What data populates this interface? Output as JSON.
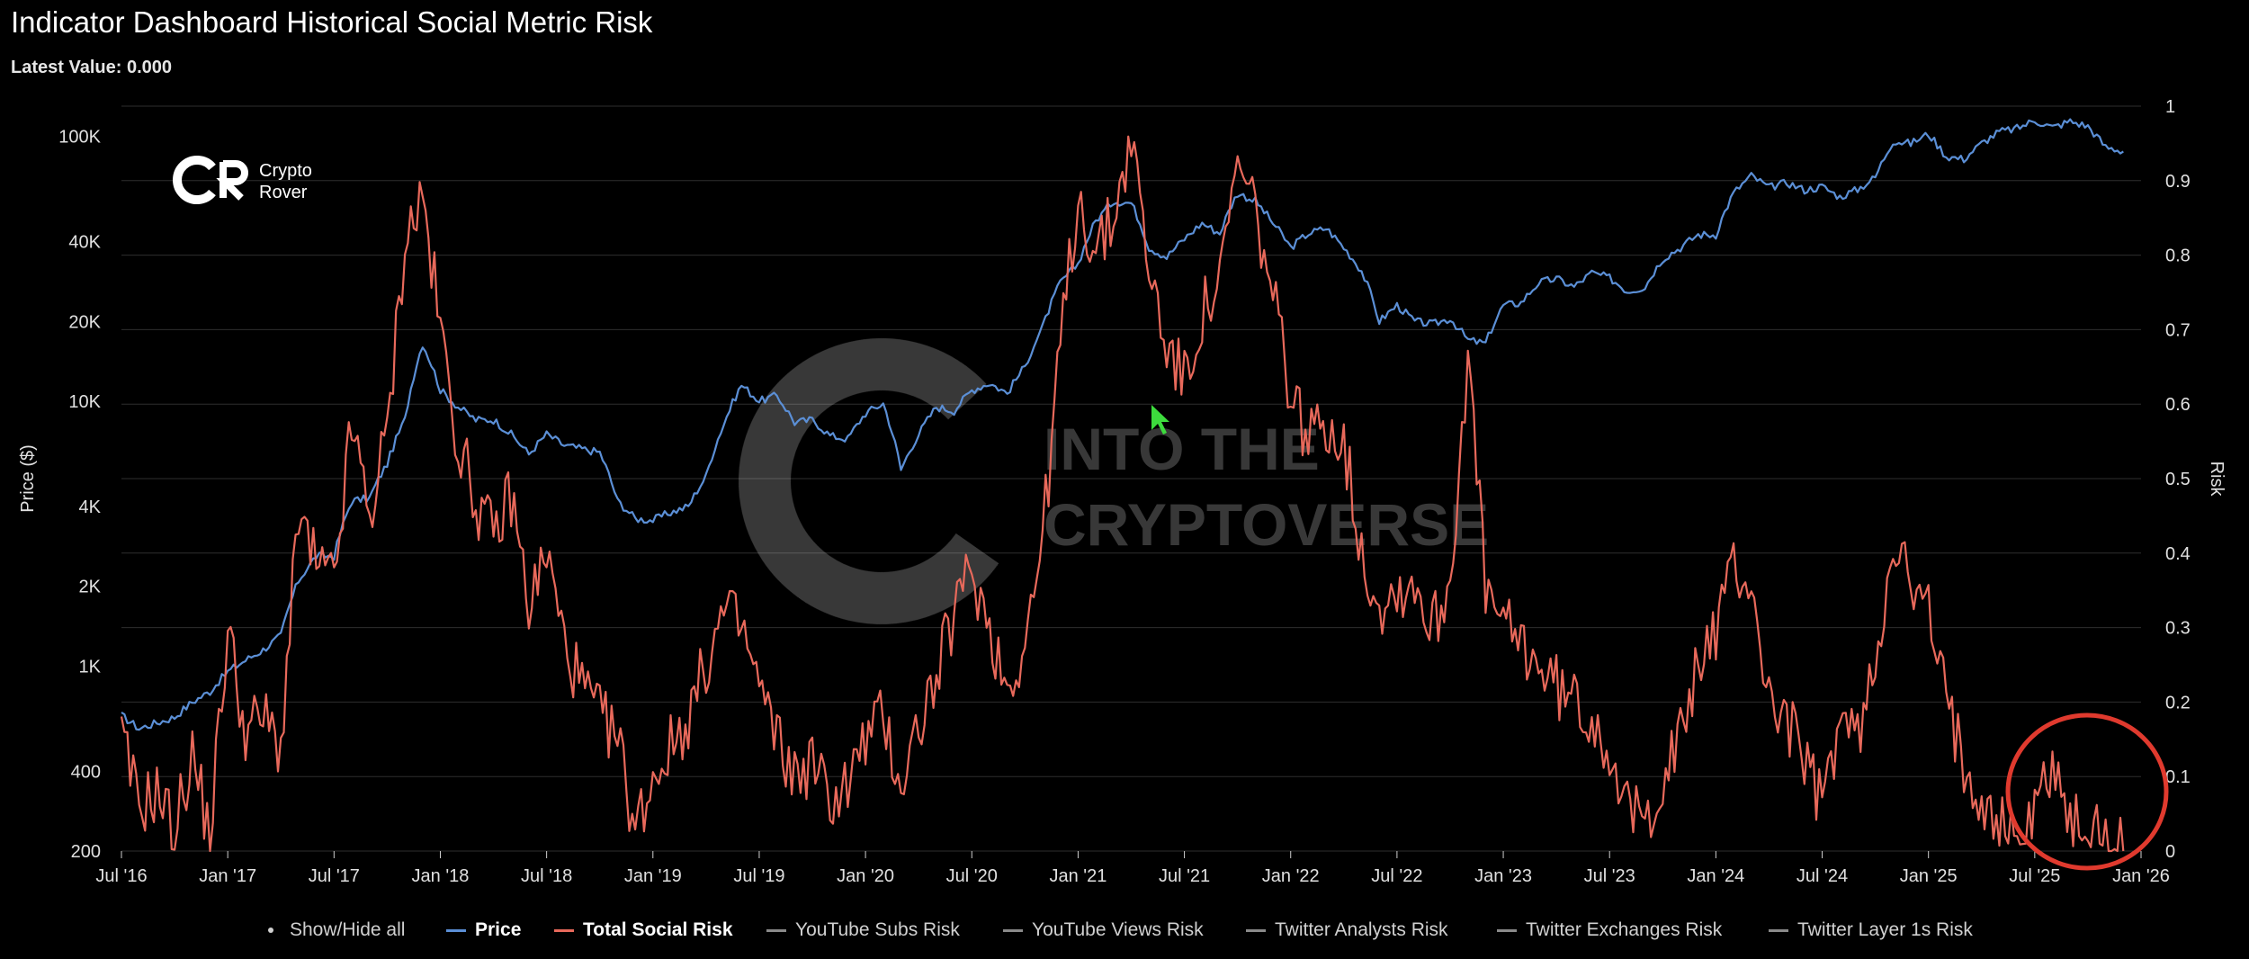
{
  "header": {
    "title": "Indicator Dashboard Historical Social Metric Risk",
    "latest_label": "Latest Value:",
    "latest_value": "0.000"
  },
  "logo": {
    "line1": "Crypto",
    "line2": "Rover"
  },
  "watermark": {
    "line1": "INTO THE",
    "line2": "CRYPTOVERSE"
  },
  "legend": {
    "show_hide": "Show/Hide all",
    "items": [
      {
        "label": "Price",
        "color": "#5b8fd6",
        "bold": true
      },
      {
        "label": "Total Social Risk",
        "color": "#e8695b",
        "bold": true
      },
      {
        "label": "YouTube Subs Risk",
        "color": "#8a8a8a",
        "bold": false
      },
      {
        "label": "YouTube Views Risk",
        "color": "#8a8a8a",
        "bold": false
      },
      {
        "label": "Twitter Analysts Risk",
        "color": "#8a8a8a",
        "bold": false
      },
      {
        "label": "Twitter Exchanges Risk",
        "color": "#8a8a8a",
        "bold": false
      },
      {
        "label": "Twitter Layer 1s Risk",
        "color": "#8a8a8a",
        "bold": false
      }
    ]
  },
  "colors": {
    "background": "#000000",
    "price": "#5b8fd6",
    "risk": "#e8695b",
    "grid": "#2e2e2e",
    "highlight_circle": "#e03a2e",
    "cursor": "#3ddc3d"
  },
  "chart_data": {
    "type": "line",
    "x_axis": {
      "ticks": [
        "Jul '16",
        "Jan '17",
        "Jul '17",
        "Jan '18",
        "Jul '18",
        "Jan '19",
        "Jul '19",
        "Jan '20",
        "Jul '20",
        "Jan '21",
        "Jul '21",
        "Jan '22",
        "Jul '22",
        "Jan '23",
        "Jul '23",
        "Jan '24",
        "Jul '24",
        "Jan '25",
        "Jul '25",
        "Jan '26"
      ],
      "range": [
        "Jul '16",
        "Jan '26"
      ]
    },
    "y_left": {
      "label": "Price ($)",
      "scale": "log",
      "ticks": [
        {
          "value": 200,
          "label": "200"
        },
        {
          "value": 400,
          "label": "400"
        },
        {
          "value": 1000,
          "label": "1K"
        },
        {
          "value": 2000,
          "label": "2K"
        },
        {
          "value": 4000,
          "label": "4K"
        },
        {
          "value": 10000,
          "label": "10K"
        },
        {
          "value": 20000,
          "label": "20K"
        },
        {
          "value": 40000,
          "label": "40K"
        },
        {
          "value": 100000,
          "label": "100K"
        }
      ],
      "range": [
        200,
        130000
      ]
    },
    "y_right": {
      "label": "Risk",
      "scale": "linear",
      "ticks": [
        "0",
        "0.1",
        "0.2",
        "0.3",
        "0.4",
        "0.5",
        "0.6",
        "0.7",
        "0.8",
        "0.9",
        "1"
      ],
      "range": [
        0,
        1
      ]
    },
    "grid": true,
    "series": [
      {
        "name": "Price",
        "axis": "left",
        "points": [
          [
            "2016-07",
            650
          ],
          [
            "2016-08",
            580
          ],
          [
            "2016-09",
            610
          ],
          [
            "2016-10",
            640
          ],
          [
            "2016-11",
            730
          ],
          [
            "2016-12",
            800
          ],
          [
            "2017-01",
            950
          ],
          [
            "2017-02",
            1050
          ],
          [
            "2017-03",
            1150
          ],
          [
            "2017-04",
            1300
          ],
          [
            "2017-05",
            2100
          ],
          [
            "2017-06",
            2600
          ],
          [
            "2017-07",
            2600
          ],
          [
            "2017-08",
            4200
          ],
          [
            "2017-09",
            4300
          ],
          [
            "2017-10",
            5800
          ],
          [
            "2017-11",
            8500
          ],
          [
            "2017-12",
            16500
          ],
          [
            "2018-01",
            11000
          ],
          [
            "2018-02",
            9500
          ],
          [
            "2018-03",
            8500
          ],
          [
            "2018-04",
            8500
          ],
          [
            "2018-05",
            7500
          ],
          [
            "2018-06",
            6300
          ],
          [
            "2018-07",
            7500
          ],
          [
            "2018-08",
            6800
          ],
          [
            "2018-09",
            6600
          ],
          [
            "2018-10",
            6400
          ],
          [
            "2018-11",
            4200
          ],
          [
            "2018-12",
            3600
          ],
          [
            "2019-01",
            3550
          ],
          [
            "2019-02",
            3800
          ],
          [
            "2019-03",
            4000
          ],
          [
            "2019-04",
            5200
          ],
          [
            "2019-05",
            8200
          ],
          [
            "2019-06",
            11500
          ],
          [
            "2019-07",
            10000
          ],
          [
            "2019-08",
            10500
          ],
          [
            "2019-09",
            8300
          ],
          [
            "2019-10",
            8500
          ],
          [
            "2019-11",
            7400
          ],
          [
            "2019-12",
            7200
          ],
          [
            "2020-01",
            9000
          ],
          [
            "2020-02",
            9800
          ],
          [
            "2020-03",
            5500
          ],
          [
            "2020-04",
            7500
          ],
          [
            "2020-05",
            9500
          ],
          [
            "2020-06",
            9200
          ],
          [
            "2020-07",
            11000
          ],
          [
            "2020-08",
            11700
          ],
          [
            "2020-09",
            10700
          ],
          [
            "2020-10",
            13500
          ],
          [
            "2020-11",
            19000
          ],
          [
            "2020-12",
            28000
          ],
          [
            "2021-01",
            33000
          ],
          [
            "2021-02",
            48000
          ],
          [
            "2021-03",
            57000
          ],
          [
            "2021-04",
            56000
          ],
          [
            "2021-05",
            38000
          ],
          [
            "2021-06",
            35000
          ],
          [
            "2021-07",
            41000
          ],
          [
            "2021-08",
            47000
          ],
          [
            "2021-09",
            43000
          ],
          [
            "2021-10",
            61000
          ],
          [
            "2021-11",
            57000
          ],
          [
            "2021-12",
            47000
          ],
          [
            "2022-01",
            38000
          ],
          [
            "2022-02",
            43000
          ],
          [
            "2022-03",
            45000
          ],
          [
            "2022-04",
            38000
          ],
          [
            "2022-05",
            31000
          ],
          [
            "2022-06",
            20000
          ],
          [
            "2022-07",
            23000
          ],
          [
            "2022-08",
            20000
          ],
          [
            "2022-09",
            19500
          ],
          [
            "2022-10",
            20500
          ],
          [
            "2022-11",
            17000
          ],
          [
            "2022-12",
            16500
          ],
          [
            "2023-01",
            23000
          ],
          [
            "2023-02",
            23500
          ],
          [
            "2023-03",
            28000
          ],
          [
            "2023-04",
            29000
          ],
          [
            "2023-05",
            27000
          ],
          [
            "2023-06",
            30500
          ],
          [
            "2023-07",
            29200
          ],
          [
            "2023-08",
            26000
          ],
          [
            "2023-09",
            27000
          ],
          [
            "2023-10",
            34500
          ],
          [
            "2023-11",
            38000
          ],
          [
            "2023-12",
            42500
          ],
          [
            "2024-01",
            42500
          ],
          [
            "2024-02",
            61000
          ],
          [
            "2024-03",
            71000
          ],
          [
            "2024-04",
            64000
          ],
          [
            "2024-05",
            67000
          ],
          [
            "2024-06",
            62700
          ],
          [
            "2024-07",
            64600
          ],
          [
            "2024-08",
            59000
          ],
          [
            "2024-09",
            63000
          ],
          [
            "2024-10",
            70000
          ],
          [
            "2024-11",
            96000
          ],
          [
            "2024-12",
            94000
          ],
          [
            "2025-01",
            102000
          ],
          [
            "2025-02",
            84000
          ],
          [
            "2025-03",
            82000
          ],
          [
            "2025-04",
            94000
          ],
          [
            "2025-05",
            104000
          ],
          [
            "2025-06",
            107000
          ],
          [
            "2025-07",
            115000
          ],
          [
            "2025-08",
            108000
          ],
          [
            "2025-09",
            114000
          ],
          [
            "2025-10",
            109000
          ],
          [
            "2025-11",
            91000
          ],
          [
            "2025-12",
            88000
          ]
        ]
      },
      {
        "name": "Total Social Risk",
        "axis": "right",
        "points": [
          [
            "2016-07",
            0.15
          ],
          [
            "2016-08",
            0.06
          ],
          [
            "2016-09",
            0.08
          ],
          [
            "2016-10",
            0.03
          ],
          [
            "2016-11",
            0.13
          ],
          [
            "2016-12",
            0.02
          ],
          [
            "2017-01",
            0.3
          ],
          [
            "2017-02",
            0.16
          ],
          [
            "2017-03",
            0.18
          ],
          [
            "2017-04",
            0.14
          ],
          [
            "2017-05",
            0.45
          ],
          [
            "2017-06",
            0.38
          ],
          [
            "2017-07",
            0.36
          ],
          [
            "2017-08",
            0.57
          ],
          [
            "2017-09",
            0.45
          ],
          [
            "2017-10",
            0.56
          ],
          [
            "2017-11",
            0.82
          ],
          [
            "2017-12",
            0.88
          ],
          [
            "2018-01",
            0.7
          ],
          [
            "2018-02",
            0.55
          ],
          [
            "2018-03",
            0.47
          ],
          [
            "2018-04",
            0.42
          ],
          [
            "2018-05",
            0.48
          ],
          [
            "2018-06",
            0.33
          ],
          [
            "2018-07",
            0.4
          ],
          [
            "2018-08",
            0.28
          ],
          [
            "2018-09",
            0.22
          ],
          [
            "2018-10",
            0.18
          ],
          [
            "2018-11",
            0.15
          ],
          [
            "2018-12",
            0.03
          ],
          [
            "2019-01",
            0.1
          ],
          [
            "2019-02",
            0.14
          ],
          [
            "2019-03",
            0.18
          ],
          [
            "2019-04",
            0.25
          ],
          [
            "2019-05",
            0.32
          ],
          [
            "2019-06",
            0.3
          ],
          [
            "2019-07",
            0.22
          ],
          [
            "2019-08",
            0.15
          ],
          [
            "2019-09",
            0.1
          ],
          [
            "2019-10",
            0.12
          ],
          [
            "2019-11",
            0.07
          ],
          [
            "2019-12",
            0.09
          ],
          [
            "2020-01",
            0.15
          ],
          [
            "2020-02",
            0.18
          ],
          [
            "2020-03",
            0.09
          ],
          [
            "2020-04",
            0.17
          ],
          [
            "2020-05",
            0.23
          ],
          [
            "2020-06",
            0.32
          ],
          [
            "2020-07",
            0.38
          ],
          [
            "2020-08",
            0.3
          ],
          [
            "2020-09",
            0.22
          ],
          [
            "2020-10",
            0.28
          ],
          [
            "2020-11",
            0.42
          ],
          [
            "2020-12",
            0.68
          ],
          [
            "2021-01",
            0.88
          ],
          [
            "2021-02",
            0.8
          ],
          [
            "2021-03",
            0.85
          ],
          [
            "2021-04",
            0.96
          ],
          [
            "2021-05",
            0.78
          ],
          [
            "2021-06",
            0.68
          ],
          [
            "2021-07",
            0.63
          ],
          [
            "2021-08",
            0.72
          ],
          [
            "2021-09",
            0.76
          ],
          [
            "2021-10",
            0.92
          ],
          [
            "2021-11",
            0.86
          ],
          [
            "2021-12",
            0.74
          ],
          [
            "2022-01",
            0.62
          ],
          [
            "2022-02",
            0.55
          ],
          [
            "2022-03",
            0.58
          ],
          [
            "2022-04",
            0.55
          ],
          [
            "2022-05",
            0.4
          ],
          [
            "2022-06",
            0.33
          ],
          [
            "2022-07",
            0.35
          ],
          [
            "2022-08",
            0.36
          ],
          [
            "2022-09",
            0.3
          ],
          [
            "2022-10",
            0.36
          ],
          [
            "2022-11",
            0.67
          ],
          [
            "2022-12",
            0.35
          ],
          [
            "2023-01",
            0.3
          ],
          [
            "2023-02",
            0.28
          ],
          [
            "2023-03",
            0.25
          ],
          [
            "2023-04",
            0.22
          ],
          [
            "2023-05",
            0.2
          ],
          [
            "2023-06",
            0.18
          ],
          [
            "2023-07",
            0.14
          ],
          [
            "2023-08",
            0.05
          ],
          [
            "2023-09",
            0.04
          ],
          [
            "2023-10",
            0.1
          ],
          [
            "2023-11",
            0.15
          ],
          [
            "2023-12",
            0.25
          ],
          [
            "2024-01",
            0.3
          ],
          [
            "2024-02",
            0.38
          ],
          [
            "2024-03",
            0.36
          ],
          [
            "2024-04",
            0.2
          ],
          [
            "2024-05",
            0.18
          ],
          [
            "2024-06",
            0.12
          ],
          [
            "2024-07",
            0.06
          ],
          [
            "2024-08",
            0.18
          ],
          [
            "2024-09",
            0.15
          ],
          [
            "2024-10",
            0.25
          ],
          [
            "2024-11",
            0.43
          ],
          [
            "2024-12",
            0.35
          ],
          [
            "2025-01",
            0.32
          ],
          [
            "2025-02",
            0.2
          ],
          [
            "2025-03",
            0.12
          ],
          [
            "2025-04",
            0.08
          ],
          [
            "2025-05",
            0.04
          ],
          [
            "2025-06",
            0.02
          ],
          [
            "2025-07",
            0.05
          ],
          [
            "2025-08",
            0.13
          ],
          [
            "2025-09",
            0.03
          ],
          [
            "2025-10",
            0.04
          ],
          [
            "2025-11",
            0.01
          ],
          [
            "2025-12",
            0.0
          ]
        ]
      }
    ]
  }
}
